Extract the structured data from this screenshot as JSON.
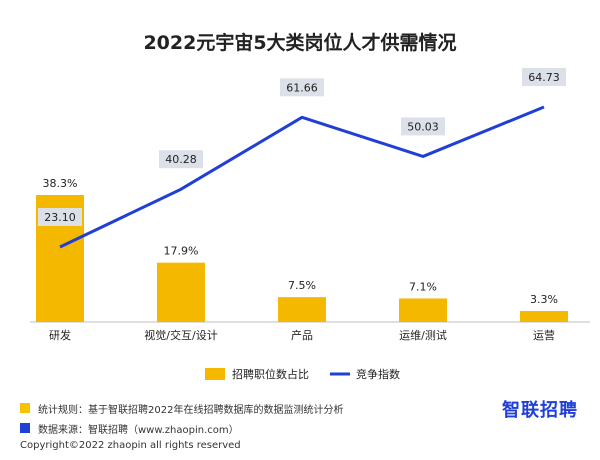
{
  "chart_data": {
    "type": "bar",
    "title": "2022元宇宙5大类岗位人才供需情况",
    "categories": [
      "研发",
      "视觉/交互/设计",
      "产品",
      "运维/测试",
      "运营"
    ],
    "series": [
      {
        "name": "招聘职位数占比",
        "type": "bar",
        "values": [
          38.3,
          17.9,
          7.5,
          7.1,
          3.3
        ],
        "labels": [
          "38.3%",
          "17.9%",
          "7.5%",
          "7.1%",
          "3.3%"
        ],
        "color": "#f5b800"
      },
      {
        "name": "竞争指数",
        "type": "line",
        "values": [
          23.1,
          40.28,
          61.66,
          50.03,
          64.73
        ],
        "labels": [
          "23.10",
          "40.28",
          "61.66",
          "50.03",
          "64.73"
        ],
        "color": "#1f3fd6"
      }
    ],
    "ylim_bar": [
      0,
      45
    ],
    "ylim_line": [
      10,
      70
    ],
    "legend_position": "bottom",
    "grid": false
  },
  "notes": {
    "rule": "统计规则：基于智联招聘2022年在线招聘数据库的数据监测统计分析",
    "source": "数据来源：智联招聘（www.zhaopin.com）",
    "rule_color": "#f5c400",
    "source_color": "#1f3fd6"
  },
  "brand": "智联招聘",
  "copyright": "Copyright©2022 zhaopin all rights reserved"
}
